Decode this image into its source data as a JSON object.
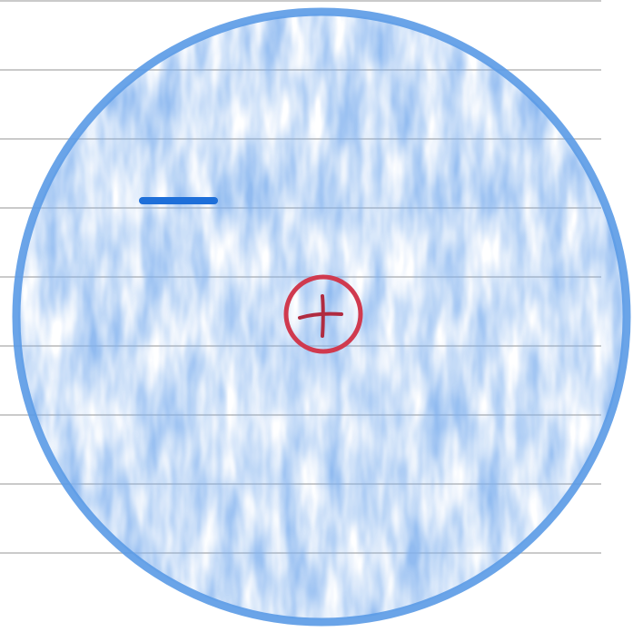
{
  "drawing": {
    "paper_color": "#ffffff",
    "rule_color": "#b9b9b9",
    "circle_stroke_color": "#5a9ae6",
    "circle_fill_color": "#7fb0ee",
    "minus_color": "#1e6fd9",
    "plus_ring_color": "#d03a4f",
    "plus_sign_color": "#b02b40",
    "minus_symbol": "−",
    "plus_symbol": "+",
    "ruled_line_count": 8
  }
}
